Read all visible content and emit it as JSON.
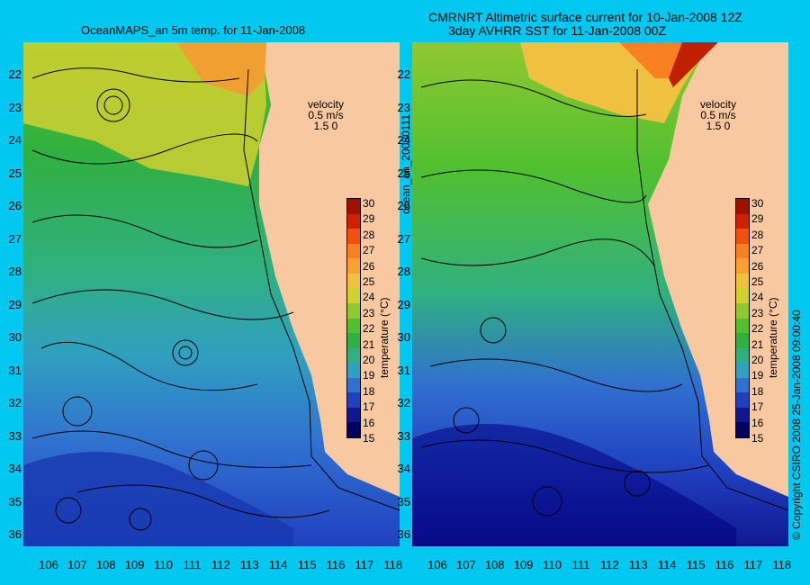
{
  "left_panel": {
    "title": "OceanMAPS_an 5m temp. for 11-Jan-2008",
    "velocity_label": "velocity",
    "velocity_scale": "0.5 m/s",
    "velocity_sub": "1.5 0"
  },
  "right_panel": {
    "title_line1": "CMRNRT Altimetric surface current for 10-Jan-2008 12Z",
    "title_line2": "3day AVHRR SST for 11-Jan-2008 00Z",
    "velocity_label": "velocity",
    "velocity_scale": "0.5 m/s",
    "velocity_sub": "1.5 0"
  },
  "y_axis_ticks": [
    "22",
    "23",
    "24",
    "25",
    "26",
    "27",
    "28",
    "29",
    "30",
    "31",
    "32",
    "33",
    "34",
    "35",
    "36"
  ],
  "x_axis_ticks": [
    "106",
    "107",
    "108",
    "109",
    "110",
    "111",
    "112",
    "113",
    "114",
    "115",
    "116",
    "117",
    "118"
  ],
  "colorbar": {
    "label": "temperature (°C)",
    "ticks": [
      "30",
      "29",
      "28",
      "27",
      "26",
      "25",
      "24",
      "23",
      "22",
      "21",
      "20",
      "19",
      "18",
      "17",
      "16",
      "15"
    ],
    "colors": [
      "#a01000",
      "#d02000",
      "#f05010",
      "#f88020",
      "#f8a030",
      "#f0c040",
      "#d0d030",
      "#90c830",
      "#50c030",
      "#30b040",
      "#30b080",
      "#30a0c0",
      "#3070d0",
      "#2040c0",
      "#101890",
      "#000060"
    ]
  },
  "side_text_middle": "ocean_an_20080111",
  "side_text_right": "© Copyright CSIRO 2008   25-Jan-2008 09:00:40"
}
